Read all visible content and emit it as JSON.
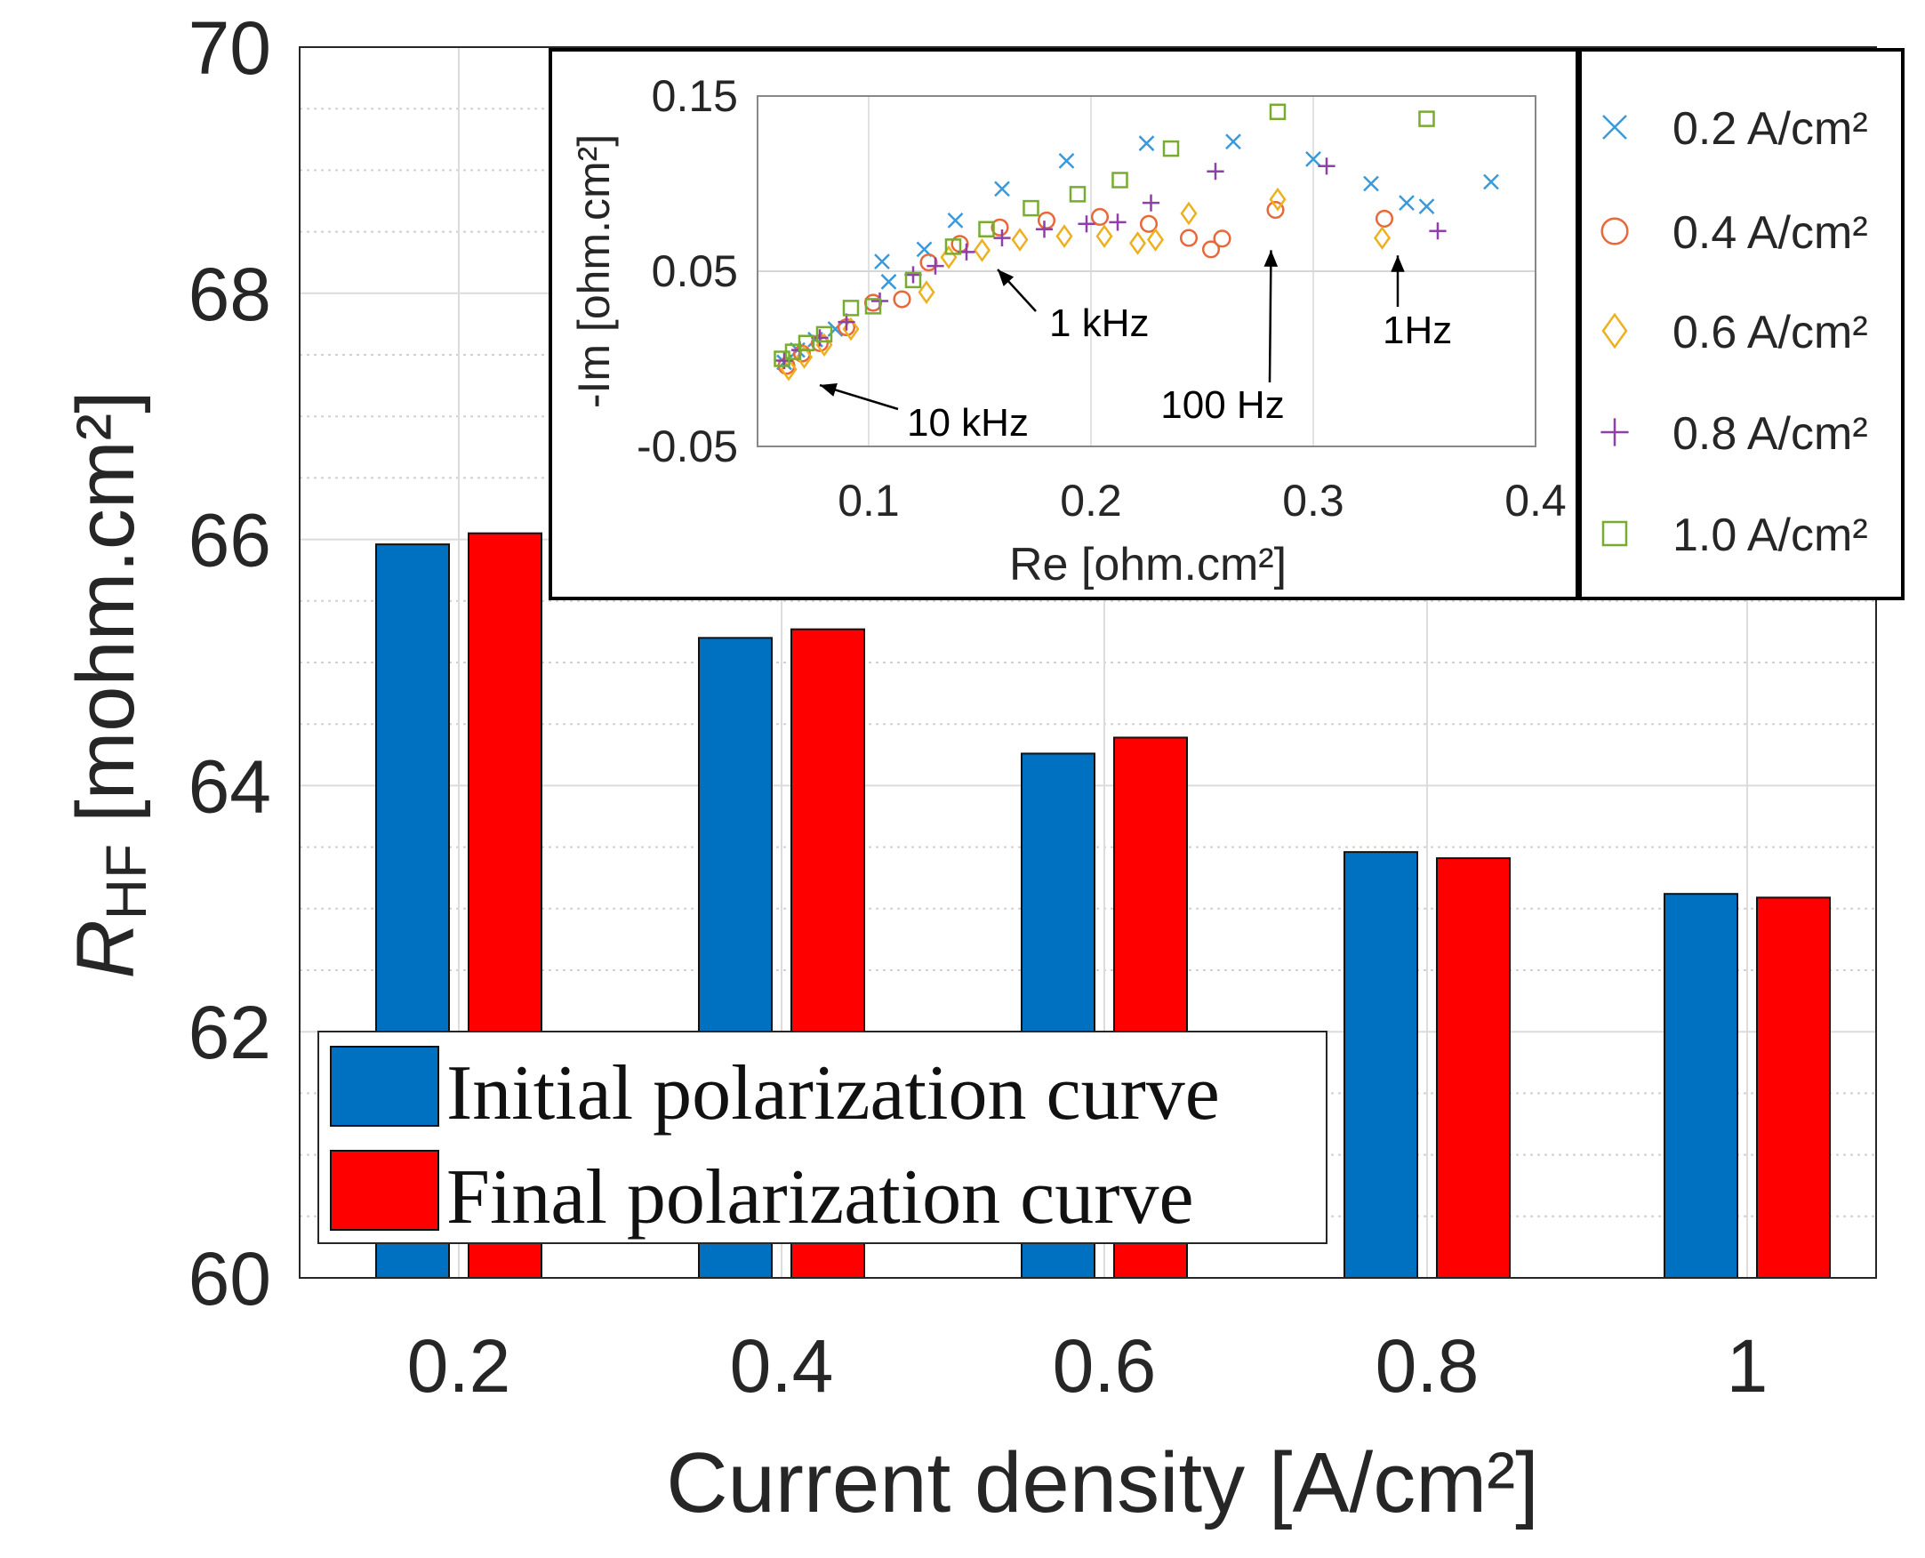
{
  "chart_data": [
    {
      "type": "bar",
      "xlabel": "Current density [A/cm²]",
      "ylabel_main": "R",
      "ylabel_sub": "HF",
      "ylabel_unit": "[mohm.cm²]",
      "ylim": [
        60,
        70
      ],
      "yticks": [
        60,
        62,
        64,
        66,
        68,
        70
      ],
      "ytick_labels": [
        "60",
        "62",
        "64",
        "66",
        "68",
        "70"
      ],
      "grid": true,
      "categories": [
        "0.2",
        "0.4",
        "0.6",
        "0.8",
        "1"
      ],
      "series": [
        {
          "name": "Initial polarization curve",
          "color": "#0070C0",
          "values": [
            65.96,
            65.2,
            64.26,
            63.46,
            63.12
          ]
        },
        {
          "name": "Final polarization curve",
          "color": "#FF0000",
          "values": [
            66.05,
            65.27,
            64.39,
            63.41,
            63.09
          ]
        }
      ],
      "legend_placement": "bottom-left"
    },
    {
      "type": "scatter",
      "title": "",
      "xlabel": "Re [ohm.cm²]",
      "ylabel": "-Im [ohm.cm²]",
      "xlim": [
        0.05,
        0.4
      ],
      "ylim": [
        -0.05,
        0.15
      ],
      "xticks": [
        0.1,
        0.2,
        0.3,
        0.4
      ],
      "xtick_labels": [
        "0.1",
        "0.2",
        "0.3",
        "0.4"
      ],
      "yticks": [
        -0.05,
        0.05,
        0.15
      ],
      "ytick_labels": [
        "-0.05",
        "0.05",
        "0.15"
      ],
      "grid": true,
      "legend_placement": "right",
      "series": [
        {
          "name": "0.2 A/cm²",
          "marker": "x",
          "color": "#3A9AD9",
          "points": [
            [
              0.062,
              -0.002
            ],
            [
              0.068,
              0.005
            ],
            [
              0.076,
              0.011
            ],
            [
              0.085,
              0.017
            ],
            [
              0.109,
              0.044
            ],
            [
              0.106,
              0.0555
            ],
            [
              0.125,
              0.0625
            ],
            [
              0.139,
              0.079
            ],
            [
              0.16,
              0.097
            ],
            [
              0.189,
              0.113
            ],
            [
              0.225,
              0.123
            ],
            [
              0.264,
              0.124
            ],
            [
              0.3,
              0.114
            ],
            [
              0.326,
              0.1
            ],
            [
              0.342,
              0.089
            ],
            [
              0.351,
              0.087
            ],
            [
              0.38,
              0.101
            ]
          ]
        },
        {
          "name": "0.4 A/cm²",
          "marker": "circle",
          "color": "#E8683A",
          "points": [
            [
              0.063,
              -0.004
            ],
            [
              0.07,
              0.003
            ],
            [
              0.078,
              0.009
            ],
            [
              0.09,
              0.018
            ],
            [
              0.102,
              0.032
            ],
            [
              0.115,
              0.034
            ],
            [
              0.127,
              0.055
            ],
            [
              0.141,
              0.0656
            ],
            [
              0.159,
              0.075
            ],
            [
              0.18,
              0.079
            ],
            [
              0.204,
              0.081
            ],
            [
              0.226,
              0.077
            ],
            [
              0.244,
              0.069
            ],
            [
              0.254,
              0.0625
            ],
            [
              0.259,
              0.0686
            ],
            [
              0.283,
              0.085
            ],
            [
              0.332,
              0.08
            ]
          ]
        },
        {
          "name": "0.6 A/cm²",
          "marker": "diamond",
          "color": "#EDB120",
          "points": [
            [
              0.064,
              -0.006
            ],
            [
              0.071,
              0.001
            ],
            [
              0.08,
              0.008
            ],
            [
              0.092,
              0.017
            ],
            [
              0.126,
              0.038
            ],
            [
              0.136,
              0.058
            ],
            [
              0.151,
              0.062
            ],
            [
              0.168,
              0.068
            ],
            [
              0.188,
              0.07
            ],
            [
              0.206,
              0.07
            ],
            [
              0.221,
              0.066
            ],
            [
              0.229,
              0.068
            ],
            [
              0.244,
              0.083
            ],
            [
              0.284,
              0.091
            ],
            [
              0.331,
              0.069
            ]
          ]
        },
        {
          "name": "0.8 A/cm²",
          "marker": "plus",
          "color": "#8E3FA8",
          "points": [
            [
              0.062,
              -0.001
            ],
            [
              0.069,
              0.005
            ],
            [
              0.078,
              0.012
            ],
            [
              0.09,
              0.021
            ],
            [
              0.105,
              0.033
            ],
            [
              0.12,
              0.048
            ],
            [
              0.13,
              0.053
            ],
            [
              0.144,
              0.061
            ],
            [
              0.16,
              0.069
            ],
            [
              0.179,
              0.074
            ],
            [
              0.198,
              0.077
            ],
            [
              0.212,
              0.078
            ],
            [
              0.227,
              0.089
            ],
            [
              0.256,
              0.107
            ],
            [
              0.306,
              0.11
            ],
            [
              0.356,
              0.073
            ]
          ]
        },
        {
          "name": "1.0 A/cm²",
          "marker": "square",
          "color": "#77AC30",
          "points": [
            [
              0.061,
              0.0
            ],
            [
              0.066,
              0.004
            ],
            [
              0.072,
              0.009
            ],
            [
              0.08,
              0.014
            ],
            [
              0.092,
              0.029
            ],
            [
              0.102,
              0.03
            ],
            [
              0.12,
              0.045
            ],
            [
              0.138,
              0.064
            ],
            [
              0.153,
              0.074
            ],
            [
              0.173,
              0.086
            ],
            [
              0.194,
              0.094
            ],
            [
              0.213,
              0.102
            ],
            [
              0.236,
              0.12
            ],
            [
              0.284,
              0.141
            ],
            [
              0.351,
              0.137
            ]
          ]
        }
      ],
      "annotations": [
        {
          "text": "10 kHz",
          "x": 0.078,
          "y": -0.015
        },
        {
          "text": "1 kHz",
          "x": 0.158,
          "y": 0.051
        },
        {
          "text": "100 Hz",
          "x": 0.281,
          "y": 0.062
        },
        {
          "text": "1Hz",
          "x": 0.338,
          "y": 0.059
        }
      ]
    }
  ]
}
